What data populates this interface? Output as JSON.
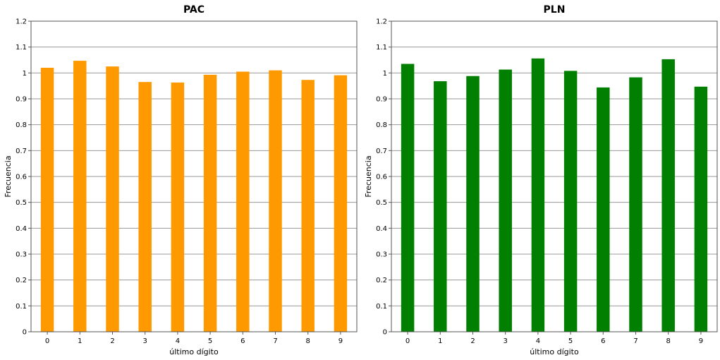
{
  "chart_data": [
    {
      "type": "bar",
      "title": "PAC",
      "xlabel": "último dígito",
      "ylabel": "Frecuencia",
      "categories": [
        "0",
        "1",
        "2",
        "3",
        "4",
        "5",
        "6",
        "7",
        "8",
        "9"
      ],
      "values": [
        1.02,
        1.047,
        1.025,
        0.965,
        0.963,
        0.993,
        1.005,
        1.01,
        0.973,
        0.991
      ],
      "ylim": [
        0,
        1.2
      ],
      "yticks": [
        "0",
        "0.1",
        "0.2",
        "0.3",
        "0.4",
        "0.5",
        "0.6",
        "0.7",
        "0.8",
        "0.9",
        "1",
        "1.1",
        "1.2"
      ],
      "color": "#ff9900",
      "grid": true
    },
    {
      "type": "bar",
      "title": "PLN",
      "xlabel": "último dígito",
      "ylabel": "Frecuencia",
      "categories": [
        "0",
        "1",
        "2",
        "3",
        "4",
        "5",
        "6",
        "7",
        "8",
        "9"
      ],
      "values": [
        1.035,
        0.968,
        0.988,
        1.013,
        1.056,
        1.008,
        0.944,
        0.983,
        1.053,
        0.947
      ],
      "ylim": [
        0,
        1.2
      ],
      "yticks": [
        "0",
        "0.1",
        "0.2",
        "0.3",
        "0.4",
        "0.5",
        "0.6",
        "0.7",
        "0.8",
        "0.9",
        "1",
        "1.1",
        "1.2"
      ],
      "color": "#007f00",
      "grid": true
    }
  ]
}
